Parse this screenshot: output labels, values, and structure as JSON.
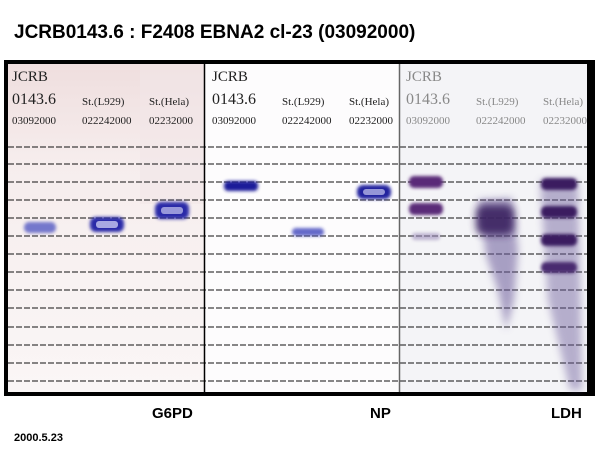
{
  "title": "JCRB0143.6 : F2408 EBNA2 cl-23 (03092000)",
  "panels": [
    {
      "lanes": [
        [
          "JCRB",
          "0143.6",
          "03092000"
        ],
        [
          "St.(L929)",
          "022242000"
        ],
        [
          "St.(Hela)",
          "02232000"
        ]
      ],
      "enzyme": "G6PD"
    },
    {
      "lanes": [
        [
          "JCRB",
          "0143.6",
          "03092000"
        ],
        [
          "St.(L929)",
          "022242000"
        ],
        [
          "St.(Hela)",
          "02232000"
        ]
      ],
      "enzyme": "NP"
    },
    {
      "lanes": [
        [
          "JCRB",
          "0143.6",
          "03092000"
        ],
        [
          "St.(L929)",
          "022242000"
        ],
        [
          "St.(Hela)",
          "02232000"
        ]
      ],
      "enzyme": "LDH"
    }
  ],
  "date": "2000.5.23"
}
